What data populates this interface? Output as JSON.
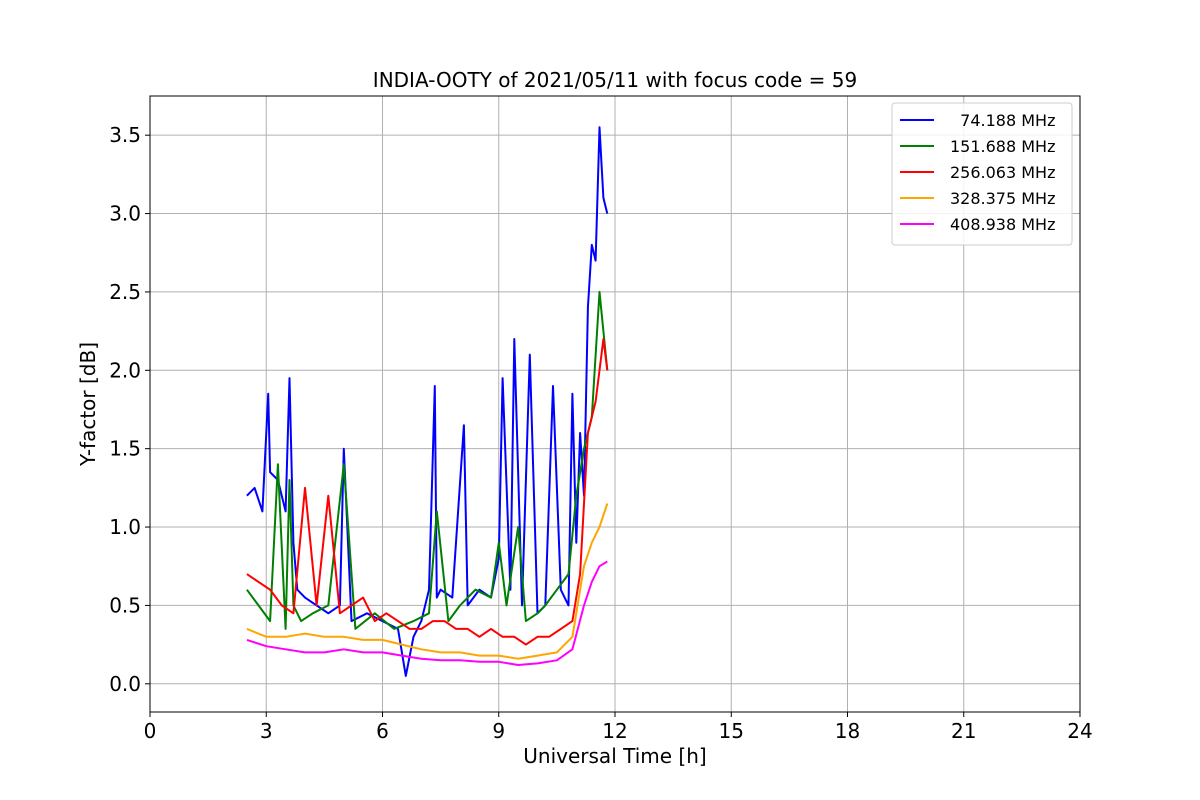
{
  "chart_data": {
    "type": "line",
    "title": "INDIA-OOTY of 2021/05/11 with focus code = 59",
    "xlabel": "Universal Time [h]",
    "ylabel": "Y-factor [dB]",
    "xlim": [
      0,
      24
    ],
    "ylim": [
      -0.18,
      3.75
    ],
    "xticks": [
      0,
      3,
      6,
      9,
      12,
      15,
      18,
      21,
      24
    ],
    "xtick_labels": [
      "0",
      "3",
      "6",
      "9",
      "12",
      "15",
      "18",
      "21",
      "24"
    ],
    "yticks": [
      0.0,
      0.5,
      1.0,
      1.5,
      2.0,
      2.5,
      3.0,
      3.5
    ],
    "ytick_labels": [
      "0.0",
      "0.5",
      "1.0",
      "1.5",
      "2.0",
      "2.5",
      "3.0",
      "3.5"
    ],
    "grid": true,
    "legend_position": "top-right",
    "series": [
      {
        "name": "  74.188 MHz",
        "color": "#0000ff",
        "x": [
          2.5,
          2.7,
          2.9,
          3.05,
          3.1,
          3.3,
          3.5,
          3.6,
          3.7,
          3.8,
          4.0,
          4.3,
          4.6,
          4.9,
          5.0,
          5.2,
          5.6,
          6.0,
          6.4,
          6.6,
          6.8,
          7.0,
          7.2,
          7.35,
          7.4,
          7.5,
          7.8,
          8.1,
          8.2,
          8.5,
          8.8,
          9.0,
          9.1,
          9.3,
          9.4,
          9.6,
          9.8,
          10.0,
          10.2,
          10.4,
          10.6,
          10.8,
          10.9,
          11.0,
          11.1,
          11.2,
          11.3,
          11.4,
          11.5,
          11.6,
          11.7,
          11.8
        ],
        "y": [
          1.2,
          1.25,
          1.1,
          1.85,
          1.35,
          1.3,
          1.1,
          1.95,
          0.9,
          0.6,
          0.55,
          0.5,
          0.45,
          0.5,
          1.5,
          0.4,
          0.45,
          0.4,
          0.35,
          0.05,
          0.3,
          0.4,
          0.6,
          1.9,
          0.55,
          0.6,
          0.55,
          1.65,
          0.5,
          0.6,
          0.55,
          0.8,
          1.95,
          0.6,
          2.2,
          0.5,
          2.1,
          0.45,
          0.5,
          1.9,
          0.6,
          0.5,
          1.85,
          0.9,
          1.6,
          1.2,
          2.4,
          2.8,
          2.7,
          3.55,
          3.1,
          3.0
        ]
      },
      {
        "name": "151.688 MHz",
        "color": "#008000",
        "x": [
          2.5,
          2.8,
          3.1,
          3.3,
          3.5,
          3.6,
          3.7,
          3.9,
          4.2,
          4.6,
          5.0,
          5.3,
          5.8,
          6.3,
          6.8,
          7.2,
          7.4,
          7.7,
          8.0,
          8.4,
          8.8,
          9.0,
          9.2,
          9.5,
          9.7,
          10.0,
          10.2,
          10.5,
          10.8,
          11.0,
          11.2,
          11.4,
          11.6,
          11.8
        ],
        "y": [
          0.6,
          0.5,
          0.4,
          1.4,
          0.35,
          1.3,
          0.5,
          0.4,
          0.45,
          0.5,
          1.4,
          0.35,
          0.45,
          0.35,
          0.4,
          0.45,
          1.1,
          0.4,
          0.5,
          0.6,
          0.55,
          0.9,
          0.5,
          1.0,
          0.4,
          0.45,
          0.5,
          0.6,
          0.7,
          1.2,
          1.5,
          1.7,
          2.5,
          2.0
        ]
      },
      {
        "name": "256.063 MHz",
        "color": "#ff0000",
        "x": [
          2.5,
          2.8,
          3.1,
          3.4,
          3.7,
          4.0,
          4.3,
          4.6,
          4.9,
          5.2,
          5.5,
          5.8,
          6.1,
          6.4,
          6.7,
          7.0,
          7.3,
          7.6,
          7.9,
          8.2,
          8.5,
          8.8,
          9.1,
          9.4,
          9.7,
          10.0,
          10.3,
          10.6,
          10.9,
          11.1,
          11.3,
          11.5,
          11.7,
          11.8
        ],
        "y": [
          0.7,
          0.65,
          0.6,
          0.5,
          0.45,
          1.25,
          0.5,
          1.2,
          0.45,
          0.5,
          0.55,
          0.4,
          0.45,
          0.4,
          0.35,
          0.35,
          0.4,
          0.4,
          0.35,
          0.35,
          0.3,
          0.35,
          0.3,
          0.3,
          0.25,
          0.3,
          0.3,
          0.35,
          0.4,
          0.7,
          1.6,
          1.8,
          2.2,
          2.0
        ]
      },
      {
        "name": "328.375 MHz",
        "color": "#ffa500",
        "x": [
          2.5,
          3.0,
          3.5,
          4.0,
          4.5,
          5.0,
          5.5,
          6.0,
          6.5,
          7.0,
          7.5,
          8.0,
          8.5,
          9.0,
          9.5,
          10.0,
          10.5,
          10.9,
          11.2,
          11.4,
          11.6,
          11.8
        ],
        "y": [
          0.35,
          0.3,
          0.3,
          0.32,
          0.3,
          0.3,
          0.28,
          0.28,
          0.25,
          0.22,
          0.2,
          0.2,
          0.18,
          0.18,
          0.16,
          0.18,
          0.2,
          0.3,
          0.75,
          0.9,
          1.0,
          1.15
        ]
      },
      {
        "name": "408.938 MHz",
        "color": "#ff00ff",
        "x": [
          2.5,
          3.0,
          3.5,
          4.0,
          4.5,
          5.0,
          5.5,
          6.0,
          6.5,
          7.0,
          7.5,
          8.0,
          8.5,
          9.0,
          9.5,
          10.0,
          10.5,
          10.9,
          11.2,
          11.4,
          11.6,
          11.8
        ],
        "y": [
          0.28,
          0.24,
          0.22,
          0.2,
          0.2,
          0.22,
          0.2,
          0.2,
          0.18,
          0.16,
          0.15,
          0.15,
          0.14,
          0.14,
          0.12,
          0.13,
          0.15,
          0.22,
          0.5,
          0.65,
          0.75,
          0.78
        ]
      }
    ]
  }
}
